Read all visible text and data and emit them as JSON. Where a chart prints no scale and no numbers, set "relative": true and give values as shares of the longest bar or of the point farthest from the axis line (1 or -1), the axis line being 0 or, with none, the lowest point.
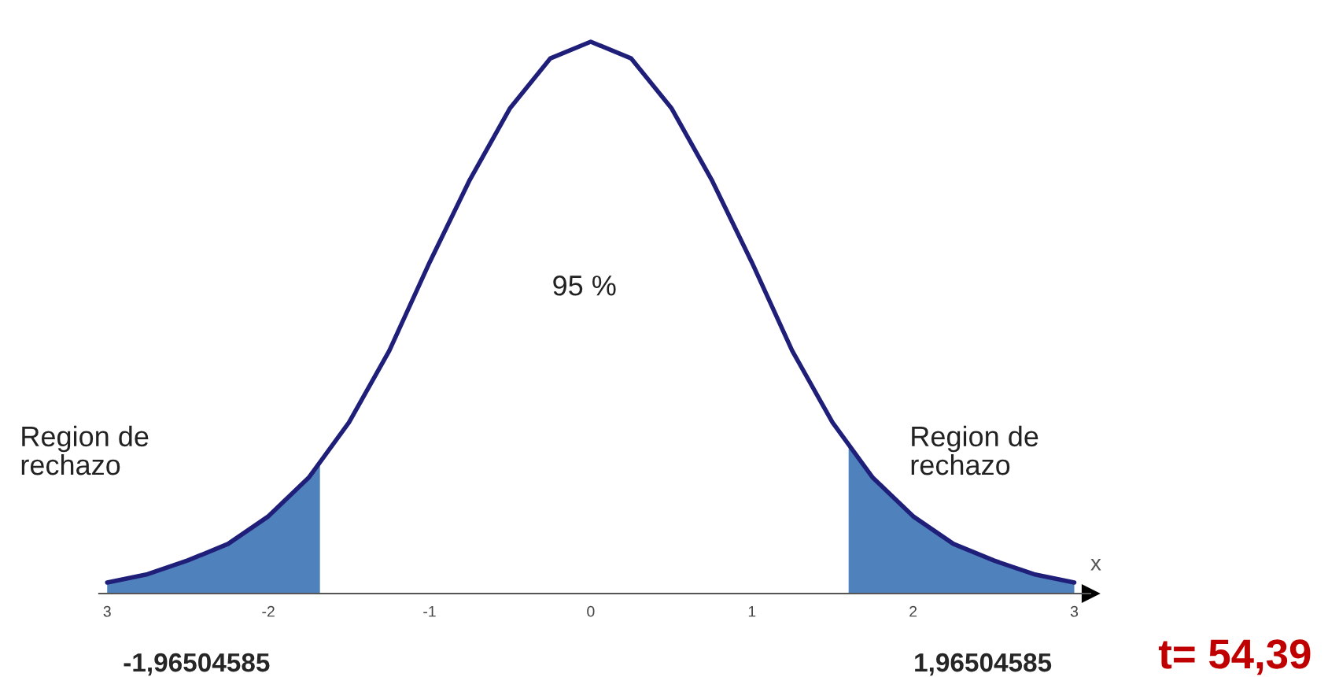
{
  "chart_data": {
    "type": "line",
    "relative": true,
    "xlabel": "x",
    "xlim": [
      -3.05,
      3.1
    ],
    "xticks": [
      {
        "value": -3,
        "label": "3"
      },
      -2,
      -1,
      0,
      1,
      2,
      3
    ],
    "series": [
      {
        "color": "#1f1f7a",
        "x": [
          -3,
          -2.75,
          -2.5,
          -2.25,
          -2,
          -1.75,
          -1.5,
          -1.25,
          -1,
          -0.75,
          -0.5,
          -0.25,
          0,
          0.25,
          0.5,
          0.75,
          1,
          1.25,
          1.5,
          1.75,
          2,
          2.25,
          2.5,
          2.75,
          3
        ],
        "values": [
          0.02,
          0.035,
          0.06,
          0.09,
          0.14,
          0.21,
          0.31,
          0.44,
          0.6,
          0.75,
          0.88,
          0.97,
          1,
          0.97,
          0.88,
          0.75,
          0.6,
          0.44,
          0.31,
          0.21,
          0.14,
          0.09,
          0.06,
          0.035,
          0.02
        ]
      },
      {
        "type": "area",
        "color": "#4f81bd",
        "x": [
          -3,
          -2.75,
          -2.5,
          -2.25,
          -2,
          -1.75,
          -1.68
        ],
        "values": [
          0.02,
          0.035,
          0.06,
          0.09,
          0.14,
          0.21,
          0.24
        ]
      },
      {
        "type": "area",
        "color": "#4f81bd",
        "x": [
          1.6,
          1.75,
          2,
          2.25,
          2.5,
          2.75,
          3
        ],
        "values": [
          0.27,
          0.21,
          0.14,
          0.09,
          0.06,
          0.035,
          0.02
        ]
      }
    ],
    "annotations": [
      "95 %",
      "Region de\nrechazo",
      "Region de\nrechazo",
      "-1,96504585",
      "1,96504585",
      "t= 54,39"
    ]
  }
}
